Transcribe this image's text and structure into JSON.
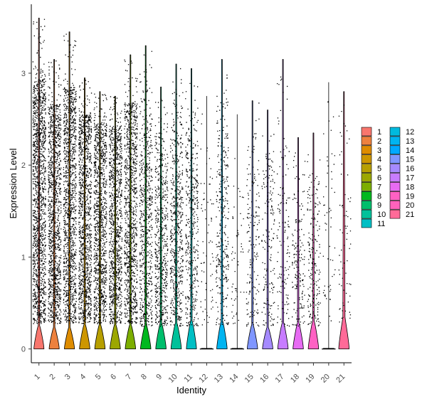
{
  "chart_data": {
    "type": "violin",
    "xlabel": "Identity",
    "ylabel": "Expression Level",
    "ylim": [
      -0.15,
      3.75
    ],
    "yticks": [
      0,
      1,
      2,
      3
    ],
    "grid": false,
    "legend_position": "right",
    "categories": [
      "1",
      "2",
      "3",
      "4",
      "5",
      "6",
      "7",
      "8",
      "9",
      "10",
      "11",
      "12",
      "13",
      "14",
      "15",
      "16",
      "17",
      "18",
      "19",
      "20",
      "21"
    ],
    "colors": [
      "#F8766D",
      "#ED813E",
      "#DE8C00",
      "#CD9600",
      "#B79F00",
      "#9CA700",
      "#7CAE00",
      "#00B81F",
      "#00BE6C",
      "#00C19A",
      "#00BFC4",
      "#00BADE",
      "#00B4F0",
      "#00A9FF",
      "#7F96FF",
      "#A58AFF",
      "#C77CFF",
      "#E76BF3",
      "#FF61C3",
      "#FF62BC",
      "#FF6A98"
    ],
    "series": [
      {
        "name": "1",
        "max": 3.6,
        "dot_density": 1.0,
        "bump_half_width": 0.33,
        "bump_height": 0.27,
        "profile": "blob"
      },
      {
        "name": "2",
        "max": 3.15,
        "dot_density": 0.85,
        "bump_half_width": 0.33,
        "bump_height": 0.25,
        "profile": "blob"
      },
      {
        "name": "3",
        "max": 3.45,
        "dot_density": 0.85,
        "bump_half_width": 0.33,
        "bump_height": 0.25,
        "profile": "blob"
      },
      {
        "name": "4",
        "max": 2.95,
        "dot_density": 0.8,
        "bump_half_width": 0.34,
        "bump_height": 0.28,
        "profile": "blob"
      },
      {
        "name": "5",
        "max": 2.8,
        "dot_density": 0.75,
        "bump_half_width": 0.34,
        "bump_height": 0.28,
        "profile": "blob"
      },
      {
        "name": "6",
        "max": 2.75,
        "dot_density": 0.7,
        "bump_half_width": 0.34,
        "bump_height": 0.28,
        "profile": "blob"
      },
      {
        "name": "7",
        "max": 3.2,
        "dot_density": 0.7,
        "bump_half_width": 0.34,
        "bump_height": 0.28,
        "profile": "blob"
      },
      {
        "name": "8",
        "max": 3.3,
        "dot_density": 0.45,
        "bump_half_width": 0.34,
        "bump_height": 0.28,
        "profile": "blob"
      },
      {
        "name": "9",
        "max": 2.85,
        "dot_density": 0.4,
        "bump_half_width": 0.34,
        "bump_height": 0.3,
        "profile": "blob"
      },
      {
        "name": "10",
        "max": 3.1,
        "dot_density": 0.4,
        "bump_half_width": 0.34,
        "bump_height": 0.3,
        "profile": "blob"
      },
      {
        "name": "11",
        "max": 3.05,
        "dot_density": 0.3,
        "bump_half_width": 0.33,
        "bump_height": 0.32,
        "profile": "blob"
      },
      {
        "name": "12",
        "max": 2.75,
        "dot_density": 0.05,
        "bump_half_width": 0.0,
        "bump_height": 0.0,
        "profile": "flat"
      },
      {
        "name": "13",
        "max": 3.15,
        "dot_density": 0.22,
        "bump_half_width": 0.34,
        "bump_height": 0.32,
        "profile": "blob"
      },
      {
        "name": "14",
        "max": 2.55,
        "dot_density": 0.04,
        "bump_half_width": 0.0,
        "bump_height": 0.0,
        "profile": "flat"
      },
      {
        "name": "15",
        "max": 2.7,
        "dot_density": 0.12,
        "bump_half_width": 0.34,
        "bump_height": 0.28,
        "profile": "blob"
      },
      {
        "name": "16",
        "max": 2.6,
        "dot_density": 0.12,
        "bump_half_width": 0.34,
        "bump_height": 0.25,
        "profile": "blob"
      },
      {
        "name": "17",
        "max": 3.15,
        "dot_density": 0.1,
        "bump_half_width": 0.34,
        "bump_height": 0.3,
        "profile": "blob"
      },
      {
        "name": "18",
        "max": 2.3,
        "dot_density": 0.12,
        "bump_half_width": 0.34,
        "bump_height": 0.3,
        "profile": "blob"
      },
      {
        "name": "19",
        "max": 2.35,
        "dot_density": 0.14,
        "bump_half_width": 0.34,
        "bump_height": 0.32,
        "profile": "blob"
      },
      {
        "name": "20",
        "max": 2.9,
        "dot_density": 0.04,
        "bump_half_width": 0.0,
        "bump_height": 0.0,
        "profile": "flat"
      },
      {
        "name": "21",
        "max": 2.8,
        "dot_density": 0.05,
        "bump_half_width": 0.34,
        "bump_height": 0.42,
        "profile": "tail"
      }
    ]
  }
}
